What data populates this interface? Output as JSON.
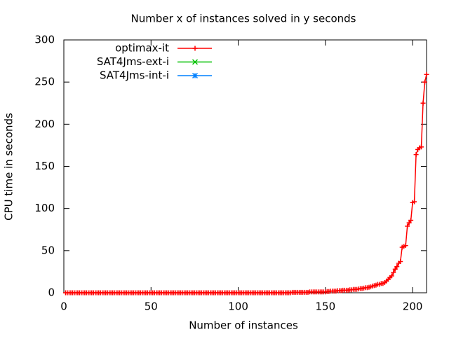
{
  "chart_data": {
    "type": "line",
    "title": "Number x of instances solved in y seconds",
    "xlabel": "Number of instances",
    "ylabel": "CPU time in seconds",
    "xlim": [
      0,
      208
    ],
    "xticks": [
      0,
      50,
      100,
      150,
      200
    ],
    "ylim": [
      0,
      300
    ],
    "yticks": [
      0,
      50,
      100,
      150,
      200,
      250,
      300
    ],
    "legend": "upper-left",
    "series": [
      {
        "name": "optimax-it",
        "color": "#ff0000",
        "marker": "+",
        "x": [
          1,
          2,
          3,
          4,
          5,
          6,
          7,
          8,
          9,
          10,
          11,
          12,
          13,
          14,
          15,
          16,
          17,
          18,
          19,
          20,
          21,
          22,
          23,
          24,
          25,
          26,
          27,
          28,
          29,
          30,
          31,
          32,
          33,
          34,
          35,
          36,
          37,
          38,
          39,
          40,
          41,
          42,
          43,
          44,
          45,
          46,
          47,
          48,
          49,
          50,
          51,
          52,
          53,
          54,
          55,
          56,
          57,
          58,
          59,
          60,
          61,
          62,
          63,
          64,
          65,
          66,
          67,
          68,
          69,
          70,
          71,
          72,
          73,
          74,
          75,
          76,
          77,
          78,
          79,
          80,
          81,
          82,
          83,
          84,
          85,
          86,
          87,
          88,
          89,
          90,
          91,
          92,
          93,
          94,
          95,
          96,
          97,
          98,
          99,
          100,
          101,
          102,
          103,
          104,
          105,
          106,
          107,
          108,
          109,
          110,
          111,
          112,
          113,
          114,
          115,
          116,
          117,
          118,
          119,
          120,
          121,
          122,
          123,
          124,
          125,
          126,
          127,
          128,
          129,
          130,
          131,
          132,
          133,
          134,
          135,
          136,
          137,
          138,
          139,
          140,
          141,
          142,
          143,
          144,
          145,
          146,
          147,
          148,
          149,
          150,
          151,
          152,
          153,
          154,
          155,
          156,
          157,
          158,
          159,
          160,
          161,
          162,
          163,
          164,
          165,
          166,
          167,
          168,
          169,
          170,
          171,
          172,
          173,
          174,
          175,
          176,
          177,
          178,
          179,
          180,
          181,
          182,
          183,
          184,
          185,
          186,
          187,
          188,
          189,
          190,
          191,
          192,
          193,
          194,
          195,
          196,
          197,
          198,
          199,
          200,
          201,
          202,
          203,
          204,
          205,
          206,
          207,
          208
        ],
        "values": [
          0,
          0,
          0,
          0,
          0,
          0,
          0,
          0,
          0,
          0,
          0,
          0,
          0,
          0,
          0,
          0,
          0,
          0,
          0,
          0,
          0,
          0,
          0,
          0,
          0,
          0,
          0,
          0,
          0,
          0,
          0,
          0,
          0,
          0,
          0,
          0,
          0,
          0,
          0,
          0,
          0,
          0,
          0,
          0,
          0,
          0,
          0,
          0,
          0,
          0,
          0,
          0,
          0,
          0,
          0,
          0,
          0,
          0,
          0,
          0,
          0,
          0,
          0,
          0,
          0,
          0,
          0,
          0,
          0,
          0,
          0,
          0,
          0,
          0,
          0,
          0,
          0,
          0,
          0,
          0,
          0,
          0,
          0,
          0,
          0,
          0,
          0,
          0,
          0,
          0,
          0,
          0,
          0,
          0,
          0,
          0,
          0,
          0,
          0,
          0,
          0,
          0,
          0,
          0,
          0,
          0,
          0,
          0,
          0,
          0,
          0,
          0,
          0,
          0,
          0,
          0,
          0,
          0,
          0,
          0,
          0,
          0,
          0,
          0,
          0,
          0,
          0,
          0,
          0,
          0,
          0.5,
          0.5,
          0.5,
          0.5,
          0.5,
          0.5,
          0.5,
          0.5,
          0.5,
          0.5,
          1,
          1,
          1,
          1,
          1,
          1,
          1,
          1,
          1,
          1,
          1.5,
          1.5,
          2,
          2,
          2,
          2,
          2.5,
          2.5,
          2.5,
          3,
          3,
          3,
          3,
          3.5,
          3.5,
          4,
          4,
          4,
          4.5,
          5,
          5,
          5.5,
          6,
          6,
          6.5,
          7,
          8,
          8.5,
          9,
          10,
          10,
          11,
          11,
          12,
          14,
          16,
          18,
          20,
          24,
          28,
          31,
          35,
          37,
          54,
          55,
          56,
          79,
          83,
          86,
          107,
          108,
          164,
          170,
          172,
          173,
          225,
          250,
          259
        ]
      },
      {
        "name": "SAT4Jms-ext-i",
        "color": "#00c000",
        "marker": "x",
        "x": [],
        "values": []
      },
      {
        "name": "SAT4Jms-int-i",
        "color": "#0080ff",
        "marker": "*",
        "x": [],
        "values": []
      }
    ]
  }
}
